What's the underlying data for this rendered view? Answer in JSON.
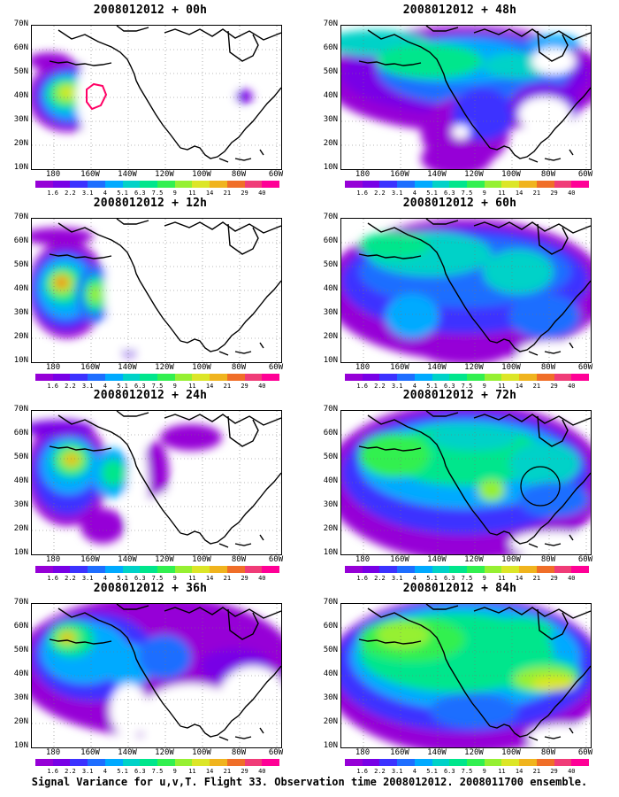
{
  "caption": "Signal Variance for u,v,T. Flight 33. Observation time 2008012012. 2008011700 ensemble.",
  "y_axis_labels": [
    "70N",
    "60N",
    "50N",
    "40N",
    "30N",
    "20N",
    "10N"
  ],
  "x_axis_labels": [
    "180",
    "160W",
    "140W",
    "120W",
    "100W",
    "80W",
    "60W"
  ],
  "colorbar": {
    "labels": [
      "1.6",
      "2.2",
      "3.1",
      "4",
      "5.1",
      "6.3",
      "7.5",
      "9",
      "11",
      "14",
      "21",
      "29",
      "40"
    ],
    "colors": [
      "#9600d7",
      "#7800e6",
      "#3c32ff",
      "#1e6eff",
      "#00aaff",
      "#00d2c8",
      "#00e68c",
      "#32f050",
      "#96f032",
      "#dce628",
      "#f0b41e",
      "#f06e28",
      "#f03c78",
      "#ff0096"
    ]
  },
  "panels": [
    {
      "title": "2008012012 + 00h"
    },
    {
      "title": "2008012012 + 48h"
    },
    {
      "title": "2008012012 + 12h"
    },
    {
      "title": "2008012012 + 60h"
    },
    {
      "title": "2008012012 + 24h"
    },
    {
      "title": "2008012012 + 72h"
    },
    {
      "title": "2008012012 + 36h"
    },
    {
      "title": "2008012012 + 84h"
    }
  ]
}
